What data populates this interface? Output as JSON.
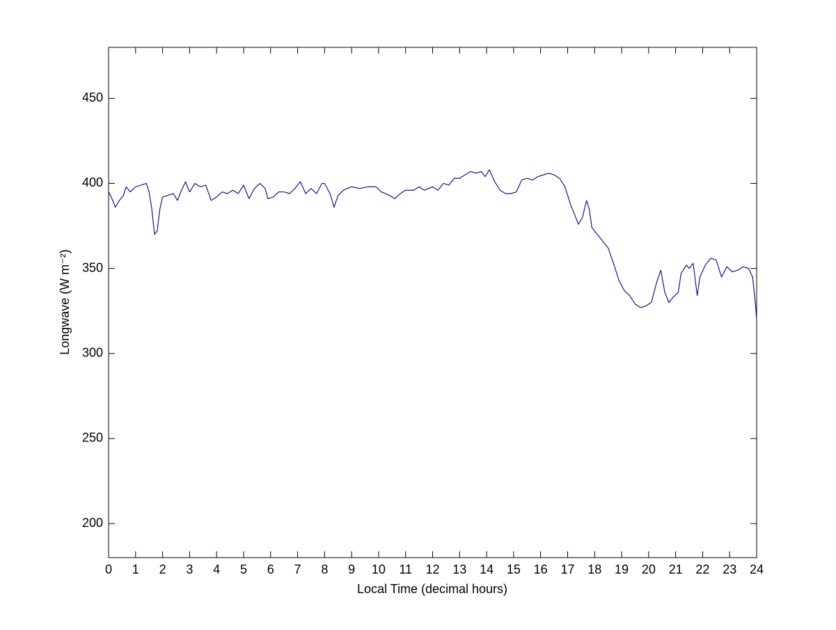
{
  "chart_data": {
    "type": "line",
    "xlabel": "Local Time (decimal hours)",
    "ylabel": "Longwave (W m⁻²)",
    "color": "#14148c",
    "xlim": [
      0,
      24
    ],
    "ylim": [
      180,
      480
    ],
    "xticks": [
      0,
      1,
      2,
      3,
      4,
      5,
      6,
      7,
      8,
      9,
      10,
      11,
      12,
      13,
      14,
      15,
      16,
      17,
      18,
      19,
      20,
      21,
      22,
      23,
      24
    ],
    "yticks": [
      200,
      250,
      300,
      350,
      400,
      450
    ],
    "x": [
      0,
      0.1,
      0.25,
      0.4,
      0.55,
      0.65,
      0.8,
      1.0,
      1.2,
      1.4,
      1.5,
      1.6,
      1.7,
      1.8,
      1.9,
      2.0,
      2.2,
      2.4,
      2.55,
      2.7,
      2.85,
      3.0,
      3.2,
      3.4,
      3.6,
      3.8,
      4.0,
      4.2,
      4.4,
      4.6,
      4.8,
      5.0,
      5.2,
      5.4,
      5.6,
      5.8,
      5.9,
      6.1,
      6.3,
      6.5,
      6.7,
      6.9,
      7.1,
      7.3,
      7.5,
      7.7,
      7.9,
      8.0,
      8.2,
      8.35,
      8.5,
      8.7,
      9.0,
      9.3,
      9.6,
      9.9,
      10.1,
      10.4,
      10.6,
      10.8,
      11.0,
      11.3,
      11.5,
      11.7,
      12.0,
      12.2,
      12.4,
      12.6,
      12.8,
      13.0,
      13.2,
      13.4,
      13.6,
      13.8,
      13.95,
      14.1,
      14.3,
      14.5,
      14.7,
      14.9,
      15.1,
      15.3,
      15.5,
      15.7,
      15.9,
      16.1,
      16.3,
      16.5,
      16.7,
      16.9,
      17.1,
      17.25,
      17.4,
      17.55,
      17.7,
      17.8,
      17.9,
      18.1,
      18.3,
      18.5,
      18.7,
      18.9,
      19.1,
      19.3,
      19.5,
      19.7,
      19.9,
      20.1,
      20.3,
      20.45,
      20.6,
      20.75,
      20.9,
      21.1,
      21.2,
      21.4,
      21.5,
      21.65,
      21.8,
      21.9,
      22.1,
      22.3,
      22.5,
      22.7,
      22.9,
      23.1,
      23.3,
      23.5,
      23.7,
      23.85,
      23.95,
      24.0
    ],
    "values": [
      395,
      392,
      386,
      390,
      393,
      398,
      395,
      398,
      399,
      400,
      395,
      385,
      370,
      372,
      385,
      392,
      393,
      394,
      390,
      396,
      401,
      395,
      400,
      398,
      399,
      390,
      392,
      395,
      394,
      396,
      394,
      399,
      391,
      397,
      400,
      397,
      391,
      392,
      395,
      395,
      394,
      397,
      401,
      394,
      397,
      394,
      400,
      400,
      394,
      386,
      393,
      396,
      398,
      397,
      398,
      398,
      395,
      393,
      391,
      394,
      396,
      396,
      398,
      396,
      398,
      396,
      400,
      399,
      403,
      403,
      405,
      407,
      406,
      407,
      404,
      408,
      401,
      396,
      394,
      394,
      395,
      402,
      403,
      402,
      404,
      405,
      406,
      405,
      403,
      398,
      388,
      382,
      376,
      380,
      390,
      385,
      374,
      370,
      366,
      362,
      353,
      343,
      337,
      334,
      329,
      327,
      328,
      330,
      342,
      349,
      336,
      330,
      333,
      336,
      347,
      352,
      350,
      353,
      334,
      345,
      352,
      356,
      355,
      345,
      351,
      348,
      349,
      351,
      350,
      345,
      330,
      320
    ]
  }
}
